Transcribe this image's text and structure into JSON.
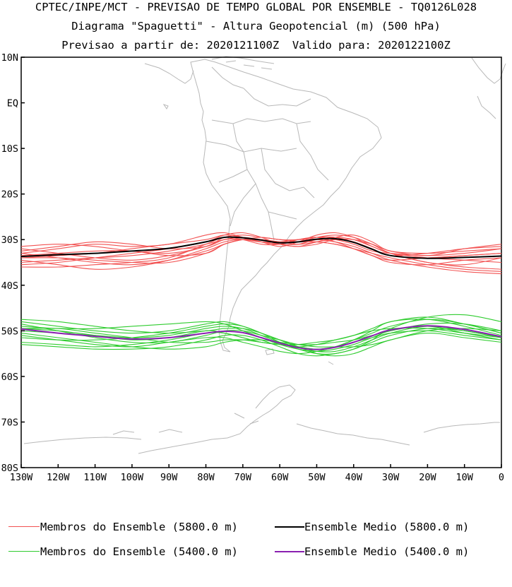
{
  "header": {
    "line1": "CPTEC/INPE/MCT - PREVISAO DE TEMPO GLOBAL POR ENSEMBLE - TQ0126L028",
    "line2": "Diagrama \"Spaguetti\" - Altura Geopotencial (m) (500 hPa)",
    "line3": "Previsao a partir de: 2020121100Z  Valido para: 2020122100Z"
  },
  "axes": {
    "lat_labels": [
      "10N",
      "EQ",
      "10S",
      "20S",
      "30S",
      "40S",
      "50S",
      "60S",
      "70S",
      "80S"
    ],
    "lat_values": [
      10,
      0,
      -10,
      -20,
      -30,
      -40,
      -50,
      -60,
      -70,
      -80
    ],
    "lon_labels": [
      "130W",
      "120W",
      "110W",
      "100W",
      "90W",
      "80W",
      "70W",
      "60W",
      "50W",
      "40W",
      "30W",
      "20W",
      "10W",
      "0"
    ],
    "lon_values": [
      -130,
      -120,
      -110,
      -100,
      -90,
      -80,
      -70,
      -60,
      -50,
      -40,
      -30,
      -20,
      -10,
      0
    ],
    "lon_range": [
      -130,
      0
    ],
    "lat_range": [
      -80,
      10
    ]
  },
  "legend": {
    "items": [
      {
        "label": "Membros do Ensemble (5800.0 m)",
        "color": "#f25252"
      },
      {
        "label": "Ensemble Medio (5800.0 m)",
        "color": "#000000"
      },
      {
        "label": "Membros do Ensemble (5400.0 m)",
        "color": "#2fcc2f"
      },
      {
        "label": "Ensemble Medio (5400.0 m)",
        "color": "#8a1fb0"
      }
    ]
  },
  "chart_data": {
    "type": "line",
    "x_unit": "longitude",
    "y_unit": "latitude",
    "x": [
      -130,
      -120,
      -110,
      -100,
      -90,
      -80,
      -75,
      -70,
      -65,
      -60,
      -55,
      -50,
      -45,
      -40,
      -35,
      -30,
      -20,
      -10,
      0
    ],
    "series": [
      {
        "group": "5800",
        "kind": "member",
        "values": [
          -33,
          -32,
          -31,
          -31.5,
          -31,
          -29,
          -28.5,
          -29.5,
          -30.5,
          -31,
          -30,
          -29.5,
          -30,
          -31,
          -32.5,
          -33,
          -33.5,
          -33,
          -32
        ]
      },
      {
        "group": "5800",
        "kind": "member",
        "values": [
          -34,
          -33.5,
          -33,
          -32,
          -31,
          -30,
          -29,
          -29.5,
          -30,
          -31,
          -31.5,
          -30.5,
          -30,
          -30.5,
          -32,
          -33.5,
          -34,
          -33.5,
          -33
        ]
      },
      {
        "group": "5800",
        "kind": "member",
        "values": [
          -35,
          -34.5,
          -34,
          -33.5,
          -32.5,
          -31,
          -30,
          -29.5,
          -30.5,
          -31.5,
          -30.5,
          -29,
          -28.5,
          -29.5,
          -31.5,
          -33,
          -35,
          -35.5,
          -34
        ]
      },
      {
        "group": "5800",
        "kind": "member",
        "values": [
          -36,
          -36,
          -35.5,
          -35,
          -34,
          -31,
          -29.5,
          -30,
          -31,
          -31,
          -30,
          -29.5,
          -30.5,
          -32,
          -33.5,
          -34.5,
          -34,
          -33.5,
          -33
        ]
      },
      {
        "group": "5800",
        "kind": "member",
        "values": [
          -32.5,
          -31.5,
          -30.5,
          -31,
          -32,
          -31.5,
          -30,
          -30,
          -30.5,
          -30.5,
          -30,
          -30,
          -30.5,
          -31.5,
          -33,
          -34.5,
          -36,
          -37,
          -37.5
        ]
      },
      {
        "group": "5800",
        "kind": "member",
        "values": [
          -34.5,
          -35.5,
          -36.5,
          -36,
          -34.5,
          -32,
          -30.5,
          -30,
          -30.5,
          -31,
          -31,
          -30,
          -29.5,
          -30,
          -31.5,
          -33,
          -34,
          -34.5,
          -35
        ]
      },
      {
        "group": "5800",
        "kind": "member",
        "values": [
          -31.5,
          -31,
          -31.5,
          -32.5,
          -33,
          -31.5,
          -29.5,
          -29,
          -29.5,
          -30,
          -30.5,
          -30.5,
          -31,
          -32,
          -33.5,
          -35,
          -35.5,
          -34.5,
          -34
        ]
      },
      {
        "group": "5800",
        "kind": "member",
        "values": [
          -33,
          -34,
          -35,
          -35.5,
          -34.5,
          -32.5,
          -31,
          -30,
          -30,
          -30.5,
          -31,
          -30.5,
          -29.5,
          -29,
          -30.5,
          -32.5,
          -33,
          -32.5,
          -32
        ]
      },
      {
        "group": "5800",
        "kind": "member",
        "values": [
          -35.5,
          -35,
          -34,
          -33,
          -32,
          -30.5,
          -29,
          -28.5,
          -29.5,
          -31,
          -31.5,
          -31,
          -30,
          -30,
          -31,
          -32.5,
          -33.5,
          -32,
          -31
        ]
      },
      {
        "group": "5800",
        "kind": "member",
        "values": [
          -33.5,
          -33,
          -32.5,
          -32.5,
          -33.5,
          -33,
          -31,
          -30,
          -30,
          -30.5,
          -30.5,
          -29.5,
          -29,
          -29.5,
          -31,
          -33,
          -35,
          -36,
          -36.5
        ]
      },
      {
        "group": "5800",
        "kind": "member",
        "values": [
          -32,
          -33,
          -34,
          -34.5,
          -33.5,
          -31.5,
          -30,
          -29.5,
          -30,
          -30.5,
          -30.5,
          -30.5,
          -31,
          -32,
          -33,
          -34,
          -35.5,
          -36.5,
          -37
        ]
      },
      {
        "group": "5800",
        "kind": "member",
        "values": [
          -34,
          -34,
          -34.5,
          -35,
          -35,
          -33,
          -31,
          -30,
          -29.5,
          -30,
          -30,
          -29.5,
          -29.5,
          -30.5,
          -32,
          -33.5,
          -33,
          -32,
          -31.5
        ]
      },
      {
        "group": "5800",
        "kind": "mean",
        "values": [
          -33.7,
          -33.3,
          -33,
          -32.5,
          -31.9,
          -30.5,
          -29.5,
          -29.6,
          -30.1,
          -30.7,
          -30.5,
          -29.9,
          -29.8,
          -30.6,
          -32.1,
          -33.5,
          -34.1,
          -33.9,
          -33.6
        ]
      },
      {
        "group": "5400",
        "kind": "member",
        "values": [
          -49.5,
          -50,
          -51,
          -52,
          -51.5,
          -50,
          -50.5,
          -51.5,
          -52.5,
          -53,
          -53.5,
          -53,
          -52,
          -51,
          -50,
          -49.5,
          -49.5,
          -50.5,
          -51.5
        ]
      },
      {
        "group": "5400",
        "kind": "member",
        "values": [
          -51,
          -52,
          -53,
          -53.5,
          -52.5,
          -51.5,
          -51.5,
          -52.5,
          -53.5,
          -54.5,
          -55,
          -54.5,
          -53.5,
          -52,
          -50.5,
          -49,
          -47.5,
          -48.5,
          -50.5
        ]
      },
      {
        "group": "5400",
        "kind": "member",
        "values": [
          -48,
          -49,
          -50,
          -50.5,
          -50,
          -48.5,
          -48,
          -49,
          -50.5,
          -52,
          -53.5,
          -54.5,
          -54.5,
          -53.5,
          -52,
          -50.5,
          -49,
          -50,
          -51.5
        ]
      },
      {
        "group": "5400",
        "kind": "member",
        "values": [
          -52.5,
          -53,
          -53.5,
          -53,
          -52,
          -50.5,
          -50.5,
          -51.5,
          -52.5,
          -53,
          -53,
          -52.5,
          -52,
          -51,
          -49.5,
          -48,
          -47,
          -48.5,
          -50.5
        ]
      },
      {
        "group": "5400",
        "kind": "member",
        "values": [
          -47.5,
          -48,
          -49,
          -50,
          -50.5,
          -50,
          -49.5,
          -49.5,
          -50.5,
          -52,
          -53.5,
          -55,
          -55.5,
          -55,
          -53.5,
          -52,
          -50.5,
          -51.5,
          -52.5
        ]
      },
      {
        "group": "5400",
        "kind": "member",
        "values": [
          -50.5,
          -51.5,
          -52.5,
          -53.5,
          -54,
          -53.5,
          -52.5,
          -52,
          -52,
          -52.5,
          -53,
          -53,
          -52.5,
          -52,
          -51,
          -50,
          -48.5,
          -48.5,
          -50
        ]
      },
      {
        "group": "5400",
        "kind": "member",
        "values": [
          -49,
          -49.5,
          -49.5,
          -49,
          -48.5,
          -48,
          -48.5,
          -50,
          -51.5,
          -53,
          -54,
          -54.5,
          -54,
          -53,
          -51.5,
          -50,
          -49,
          -50.5,
          -52
        ]
      },
      {
        "group": "5400",
        "kind": "member",
        "values": [
          -53,
          -53.5,
          -54,
          -54,
          -53.5,
          -52,
          -51,
          -51,
          -52,
          -53.5,
          -55,
          -55.5,
          -55,
          -54,
          -52,
          -49.5,
          -47,
          -46.5,
          -48
        ]
      },
      {
        "group": "5400",
        "kind": "member",
        "values": [
          -50,
          -50.5,
          -51,
          -51.5,
          -51,
          -49.5,
          -49,
          -49.5,
          -51,
          -52.5,
          -53.5,
          -54,
          -53.5,
          -52.5,
          -51.5,
          -50.5,
          -50,
          -51,
          -52
        ]
      },
      {
        "group": "5400",
        "kind": "member",
        "values": [
          -48.5,
          -50,
          -51.5,
          -52.5,
          -52.5,
          -51,
          -50,
          -50,
          -51,
          -52,
          -53,
          -53.5,
          -53.5,
          -53.5,
          -53,
          -52,
          -50,
          -49.5,
          -50
        ]
      },
      {
        "group": "5400",
        "kind": "member",
        "values": [
          -51.5,
          -52,
          -52,
          -51.5,
          -50.5,
          -49,
          -48.5,
          -49,
          -50.5,
          -52.5,
          -54,
          -55,
          -55,
          -54,
          -52.5,
          -51,
          -49.5,
          -50,
          -51.5
        ]
      },
      {
        "group": "5400",
        "kind": "member",
        "values": [
          -49.5,
          -49.5,
          -50.5,
          -51.5,
          -52.5,
          -52.5,
          -52,
          -52,
          -52.5,
          -53,
          -53.5,
          -54,
          -53.5,
          -52,
          -50,
          -48,
          -47.5,
          -49,
          -51
        ]
      },
      {
        "group": "5400",
        "kind": "mean",
        "values": [
          -49.6,
          -50.5,
          -51.2,
          -51.8,
          -51.5,
          -50.5,
          -50.1,
          -50.4,
          -51.5,
          -52.7,
          -53.7,
          -54.1,
          -53.6,
          -52.5,
          -51.1,
          -49.8,
          -48.9,
          -49.7,
          -51.3
        ]
      }
    ]
  }
}
